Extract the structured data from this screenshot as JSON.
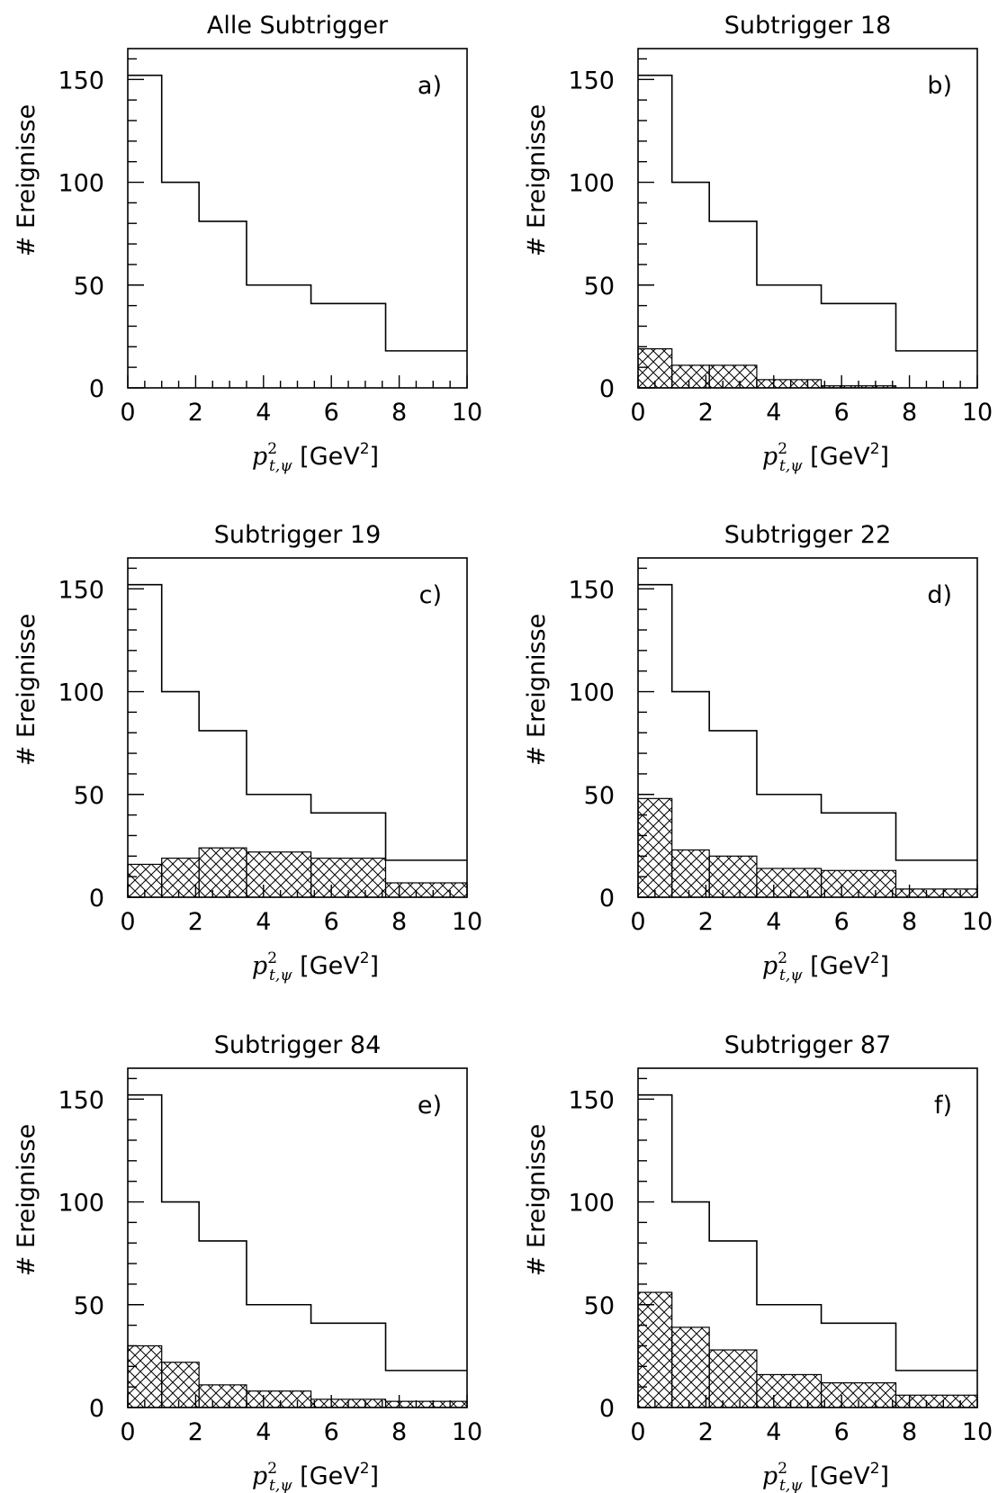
{
  "chart_data": [
    {
      "type": "histogram",
      "panel": "a)",
      "title": "Alle Subtrigger",
      "xlabel": "p²_{t,ψ} [GeV²]",
      "ylabel": "# Ereignisse",
      "xlim": [
        0,
        10
      ],
      "ylim": [
        0,
        165
      ],
      "bin_edges": [
        0,
        1,
        2.1,
        3.5,
        5.4,
        7.6,
        10
      ],
      "series": [
        {
          "style": "outline",
          "values": [
            152,
            100,
            81,
            50,
            41,
            18
          ]
        }
      ]
    },
    {
      "type": "histogram",
      "panel": "b)",
      "title": "Subtrigger 18",
      "xlabel": "p²_{t,ψ} [GeV²]",
      "ylabel": "# Ereignisse",
      "xlim": [
        0,
        10
      ],
      "ylim": [
        0,
        165
      ],
      "bin_edges": [
        0,
        1,
        2.1,
        3.5,
        5.4,
        7.6,
        10
      ],
      "series": [
        {
          "style": "outline",
          "values": [
            152,
            100,
            81,
            50,
            41,
            18
          ]
        },
        {
          "style": "hatched",
          "values": [
            19,
            11,
            11,
            4,
            1,
            0
          ]
        }
      ]
    },
    {
      "type": "histogram",
      "panel": "c)",
      "title": "Subtrigger 19",
      "xlabel": "p²_{t,ψ} [GeV²]",
      "ylabel": "# Ereignisse",
      "xlim": [
        0,
        10
      ],
      "ylim": [
        0,
        165
      ],
      "bin_edges": [
        0,
        1,
        2.1,
        3.5,
        5.4,
        7.6,
        10
      ],
      "series": [
        {
          "style": "outline",
          "values": [
            152,
            100,
            81,
            50,
            41,
            18
          ]
        },
        {
          "style": "hatched",
          "values": [
            16,
            19,
            24,
            22,
            19,
            7
          ]
        }
      ]
    },
    {
      "type": "histogram",
      "panel": "d)",
      "title": "Subtrigger 22",
      "xlabel": "p²_{t,ψ} [GeV²]",
      "ylabel": "# Ereignisse",
      "xlim": [
        0,
        10
      ],
      "ylim": [
        0,
        165
      ],
      "bin_edges": [
        0,
        1,
        2.1,
        3.5,
        5.4,
        7.6,
        10
      ],
      "series": [
        {
          "style": "outline",
          "values": [
            152,
            100,
            81,
            50,
            41,
            18
          ]
        },
        {
          "style": "hatched",
          "values": [
            48,
            23,
            20,
            14,
            13,
            4
          ]
        }
      ]
    },
    {
      "type": "histogram",
      "panel": "e)",
      "title": "Subtrigger 84",
      "xlabel": "p²_{t,ψ} [GeV²]",
      "ylabel": "# Ereignisse",
      "xlim": [
        0,
        10
      ],
      "ylim": [
        0,
        165
      ],
      "bin_edges": [
        0,
        1,
        2.1,
        3.5,
        5.4,
        7.6,
        10
      ],
      "series": [
        {
          "style": "outline",
          "values": [
            152,
            100,
            81,
            50,
            41,
            18
          ]
        },
        {
          "style": "hatched",
          "values": [
            30,
            22,
            11,
            8,
            4,
            3
          ]
        }
      ]
    },
    {
      "type": "histogram",
      "panel": "f)",
      "title": "Subtrigger 87",
      "xlabel": "p²_{t,ψ} [GeV²]",
      "ylabel": "# Ereignisse",
      "xlim": [
        0,
        10
      ],
      "ylim": [
        0,
        165
      ],
      "bin_edges": [
        0,
        1,
        2.1,
        3.5,
        5.4,
        7.6,
        10
      ],
      "series": [
        {
          "style": "outline",
          "values": [
            152,
            100,
            81,
            50,
            41,
            18
          ]
        },
        {
          "style": "hatched",
          "values": [
            56,
            39,
            28,
            16,
            12,
            6
          ]
        }
      ]
    }
  ],
  "axes": {
    "x_ticks": [
      "0",
      "2",
      "4",
      "6",
      "8",
      "10"
    ],
    "y_ticks": [
      "0",
      "50",
      "100",
      "150"
    ]
  },
  "colors": {
    "line": "#000000",
    "background": "#ffffff"
  }
}
